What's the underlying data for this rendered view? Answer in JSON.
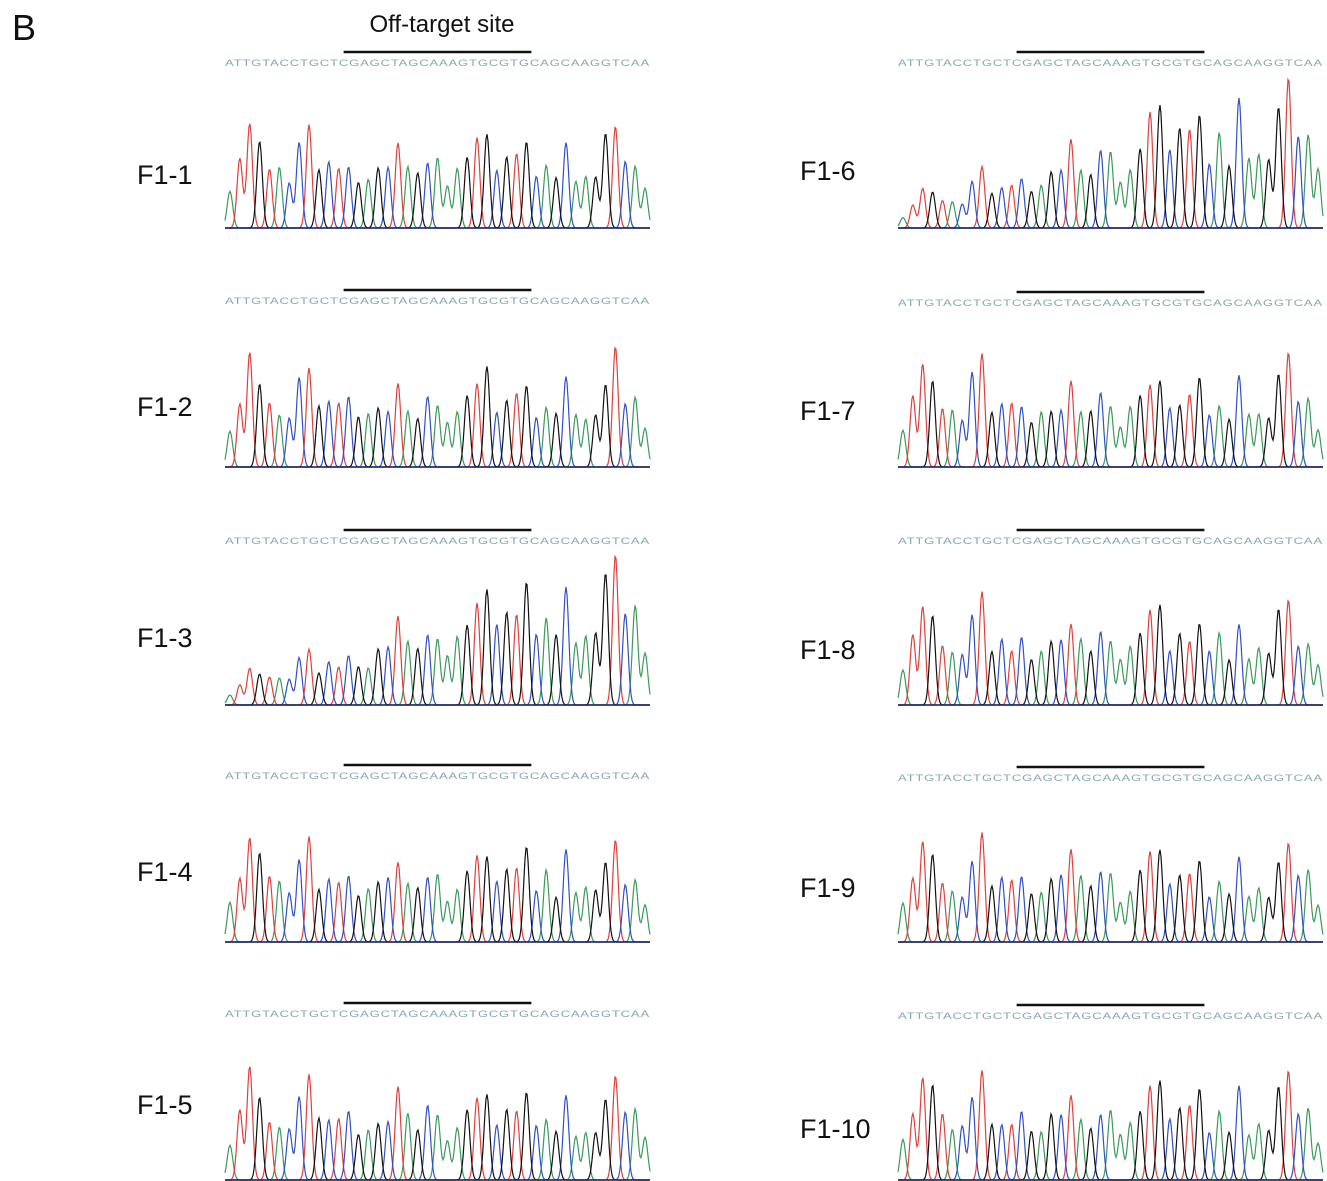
{
  "panel_label": "B",
  "header": "Off-target site",
  "sequence": "ATTGTACCTGCTCGAGCTAGCAAAGTGCGTGCAGCAAGGTCAA",
  "samples": [
    "F1-1",
    "F1-2",
    "F1-3",
    "F1-4",
    "F1-5",
    "F1-6",
    "F1-7",
    "F1-8",
    "F1-9",
    "F1-10"
  ]
}
